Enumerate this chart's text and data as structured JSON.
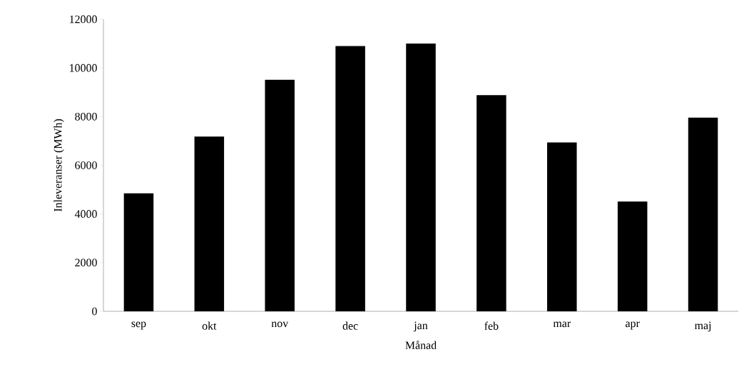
{
  "chart_data": {
    "type": "bar",
    "xlabel": "Månad",
    "ylabel": "Inleveranser (MWh)",
    "categories": [
      "sep",
      "okt",
      "nov",
      "dec",
      "jan",
      "feb",
      "mar",
      "apr",
      "maj"
    ],
    "values": [
      4850,
      7180,
      9510,
      10900,
      11000,
      8880,
      6940,
      4510,
      7960
    ],
    "color": "#000000",
    "ylim": [
      0,
      12000
    ],
    "yticks": [
      0,
      2000,
      4000,
      6000,
      8000,
      10000,
      12000
    ],
    "grid": false
  }
}
